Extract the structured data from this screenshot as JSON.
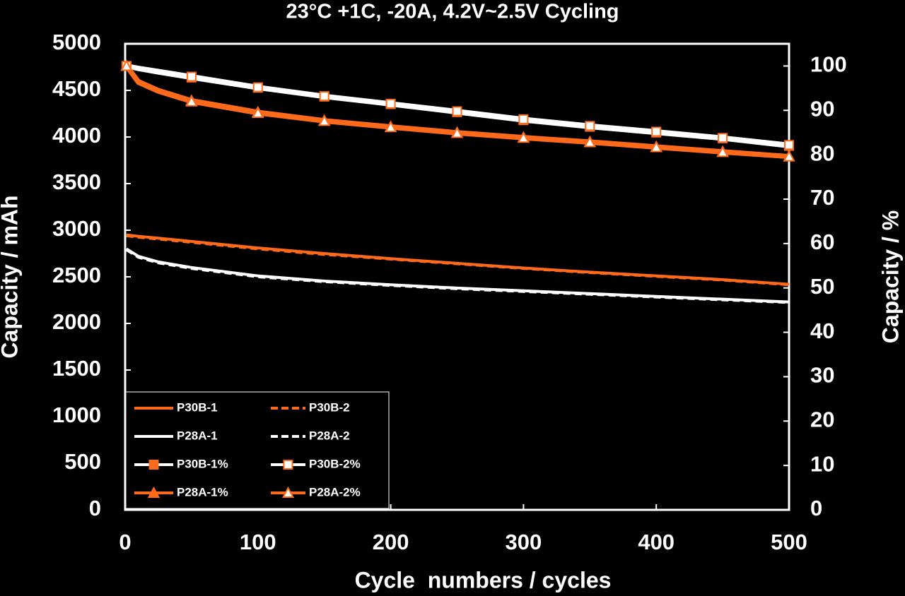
{
  "chart_data": {
    "type": "line",
    "title": "23°C +1C, -20A, 4.2V~2.5V Cycling",
    "x_label": "Cycle  numbers / cycles",
    "y_label": "Capacity / mAh",
    "y2_label": "Capacity / %",
    "x": [
      1,
      10,
      25,
      50,
      100,
      150,
      200,
      250,
      300,
      350,
      400,
      450,
      500
    ],
    "xlim": [
      0,
      500
    ],
    "xticks": [
      0,
      100,
      200,
      300,
      400,
      500
    ],
    "ylim": [
      0,
      5000
    ],
    "yticks": [
      0,
      500,
      1000,
      1500,
      2000,
      2500,
      3000,
      3500,
      4000,
      4500,
      5000
    ],
    "y2lim": [
      0,
      105
    ],
    "y2ticks": [
      0,
      10,
      20,
      30,
      40,
      50,
      60,
      70,
      80,
      90,
      100
    ],
    "legend": "lower left",
    "series": [
      {
        "name": "P30B-1",
        "color": "#ff6a1a",
        "dash": false,
        "values": [
          2950,
          2935,
          2915,
          2880,
          2810,
          2750,
          2695,
          2645,
          2595,
          2550,
          2510,
          2470,
          2420
        ]
      },
      {
        "name": "P30B-2",
        "color": "#ff6a1a",
        "dash": true,
        "values": [
          2940,
          2925,
          2905,
          2870,
          2800,
          2740,
          2690,
          2640,
          2590,
          2545,
          2505,
          2465,
          2415
        ]
      },
      {
        "name": "P28A-1",
        "color": "#ffffff",
        "dash": false,
        "values": [
          2800,
          2720,
          2660,
          2600,
          2510,
          2455,
          2415,
          2380,
          2350,
          2320,
          2290,
          2260,
          2230
        ]
      },
      {
        "name": "P28A-2",
        "color": "#ffffff",
        "dash": true,
        "values": [
          2790,
          2710,
          2650,
          2590,
          2500,
          2448,
          2408,
          2372,
          2343,
          2313,
          2283,
          2253,
          2225
        ]
      },
      {
        "name": "P30B-1%",
        "color": "#ffffff",
        "marker": "square",
        "marker_fill": "#ff6a1a",
        "axis": "y2",
        "values": [
          100,
          99.4,
          98.6,
          97.4,
          95.1,
          93.1,
          91.4,
          89.6,
          87.8,
          86.3,
          85,
          83.7,
          82
        ]
      },
      {
        "name": "P30B-2%",
        "color": "#ffffff",
        "marker": "square",
        "marker_fill": "#ffffff",
        "axis": "y2",
        "values": [
          100,
          99.5,
          98.8,
          97.6,
          95.2,
          93.2,
          91.5,
          89.8,
          88,
          86.5,
          85.2,
          83.8,
          82.2
        ]
      },
      {
        "name": "P28A-1%",
        "color": "#ff6a1a",
        "marker": "triangle",
        "marker_fill": "#ff6a1a",
        "axis": "y2",
        "values": [
          100,
          96.5,
          94.5,
          92.2,
          89.6,
          87.7,
          86.3,
          85,
          83.9,
          82.9,
          81.8,
          80.7,
          79.6
        ]
      },
      {
        "name": "P28A-2%",
        "color": "#ff6a1a",
        "marker": "triangle",
        "marker_fill": "#ffffff",
        "axis": "y2",
        "values": [
          100,
          96.3,
          94.3,
          92,
          89.4,
          87.6,
          86.2,
          84.9,
          83.8,
          82.8,
          81.7,
          80.6,
          79.6
        ]
      }
    ]
  }
}
